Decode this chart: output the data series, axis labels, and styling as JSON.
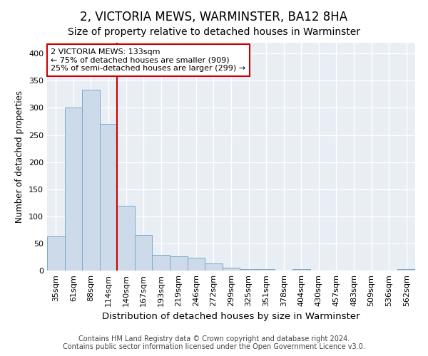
{
  "title": "2, VICTORIA MEWS, WARMINSTER, BA12 8HA",
  "subtitle": "Size of property relative to detached houses in Warminster",
  "xlabel": "Distribution of detached houses by size in Warminster",
  "ylabel": "Number of detached properties",
  "bar_color": "#cddaea",
  "bar_edgecolor": "#7aaac8",
  "categories": [
    "35sqm",
    "61sqm",
    "88sqm",
    "114sqm",
    "140sqm",
    "167sqm",
    "193sqm",
    "219sqm",
    "246sqm",
    "272sqm",
    "299sqm",
    "325sqm",
    "351sqm",
    "378sqm",
    "404sqm",
    "430sqm",
    "457sqm",
    "483sqm",
    "509sqm",
    "536sqm",
    "562sqm"
  ],
  "values": [
    63,
    300,
    333,
    270,
    120,
    65,
    29,
    26,
    24,
    13,
    5,
    2,
    3,
    0,
    2,
    0,
    0,
    0,
    0,
    0,
    3
  ],
  "vline_x": 3.5,
  "vline_color": "#cc0000",
  "annotation_text": "2 VICTORIA MEWS: 133sqm\n← 75% of detached houses are smaller (909)\n25% of semi-detached houses are larger (299) →",
  "annotation_box_color": "white",
  "annotation_edge_color": "#cc0000",
  "ylim": [
    0,
    420
  ],
  "yticks": [
    0,
    50,
    100,
    150,
    200,
    250,
    300,
    350,
    400
  ],
  "footer_line1": "Contains HM Land Registry data © Crown copyright and database right 2024.",
  "footer_line2": "Contains public sector information licensed under the Open Government Licence v3.0.",
  "plot_bg_color": "#e8eef4",
  "grid_color": "white",
  "title_fontsize": 12,
  "subtitle_fontsize": 10,
  "xlabel_fontsize": 9.5,
  "ylabel_fontsize": 8.5,
  "tick_fontsize": 8,
  "annotation_fontsize": 8,
  "footer_fontsize": 7
}
